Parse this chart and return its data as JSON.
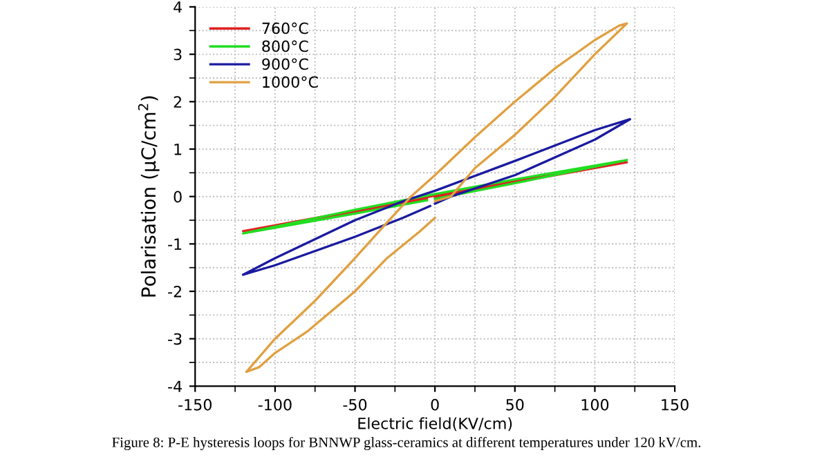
{
  "chart_data": {
    "type": "line",
    "xlabel": "Electric field(KV/cm)",
    "ylabel": "Polarisation (μC/cm$^{2}$)",
    "xlim": [
      -150,
      150
    ],
    "ylim": [
      -4,
      4
    ],
    "xticks": [
      -150,
      {
        "value": -125,
        "label": null
      },
      -100,
      {
        "value": -75,
        "label": null
      },
      -50,
      {
        "value": -25,
        "label": null
      },
      0,
      {
        "value": 25,
        "label": null
      },
      50,
      {
        "value": 75,
        "label": null
      },
      100,
      {
        "value": 125,
        "label": null
      },
      150
    ],
    "yticks": [
      -4,
      {
        "value": -3.5,
        "label": null
      },
      -3,
      {
        "value": -2.5,
        "label": null
      },
      -2,
      {
        "value": -1.5,
        "label": null
      },
      -1,
      {
        "value": -0.5,
        "label": null
      },
      0,
      {
        "value": 0.5,
        "label": null
      },
      1,
      {
        "value": 1.5,
        "label": null
      },
      2,
      {
        "value": 2.5,
        "label": null
      },
      3,
      {
        "value": 3.5,
        "label": null
      },
      4
    ],
    "grid": true,
    "legend": "top left",
    "line_style": "solid",
    "marker": "none",
    "annotations": [
      "Figure 8: P-E hysteresis loops for BNNWP glass-ceramics at different temperatures under 120 kV/cm."
    ],
    "series": [
      {
        "name": "760°C",
        "color": "#e02020",
        "x": [
          0,
          50,
          120,
          50,
          0,
          -50,
          -120,
          -50,
          -5
        ],
        "values": [
          -0.02,
          0.3,
          0.72,
          0.32,
          0.02,
          -0.3,
          -0.73,
          -0.32,
          -0.05
        ]
      },
      {
        "name": "800°C",
        "color": "#22dd22",
        "x": [
          0,
          50,
          120,
          50,
          0,
          -50,
          -120,
          -50,
          -5
        ],
        "values": [
          -0.05,
          0.28,
          0.77,
          0.36,
          0.05,
          -0.28,
          -0.78,
          -0.36,
          -0.08
        ]
      },
      {
        "name": "900°C",
        "color": "#1a1aa0",
        "x": [
          0,
          10,
          50,
          100,
          122,
          100,
          50,
          0,
          -20,
          -50,
          -100,
          -120,
          -100,
          -50,
          -20,
          -3
        ],
        "values": [
          -0.15,
          0.0,
          0.45,
          1.2,
          1.63,
          1.4,
          0.75,
          0.12,
          -0.1,
          -0.5,
          -1.3,
          -1.65,
          -1.45,
          -0.85,
          -0.45,
          -0.2
        ]
      },
      {
        "name": "1000°C",
        "color": "#e0a040",
        "x": [
          0,
          10,
          25,
          50,
          75,
          100,
          120,
          115,
          100,
          75,
          50,
          25,
          0,
          -15,
          -30,
          -50,
          -75,
          -100,
          -118,
          -110,
          -100,
          -80,
          -50,
          -30,
          -10,
          0
        ],
        "values": [
          -0.1,
          0.0,
          0.6,
          1.3,
          2.1,
          3.0,
          3.65,
          3.6,
          3.3,
          2.7,
          2.0,
          1.25,
          0.45,
          0.0,
          -0.55,
          -1.3,
          -2.2,
          -3.0,
          -3.7,
          -3.6,
          -3.3,
          -2.85,
          -2.0,
          -1.3,
          -0.75,
          -0.45
        ]
      }
    ]
  }
}
